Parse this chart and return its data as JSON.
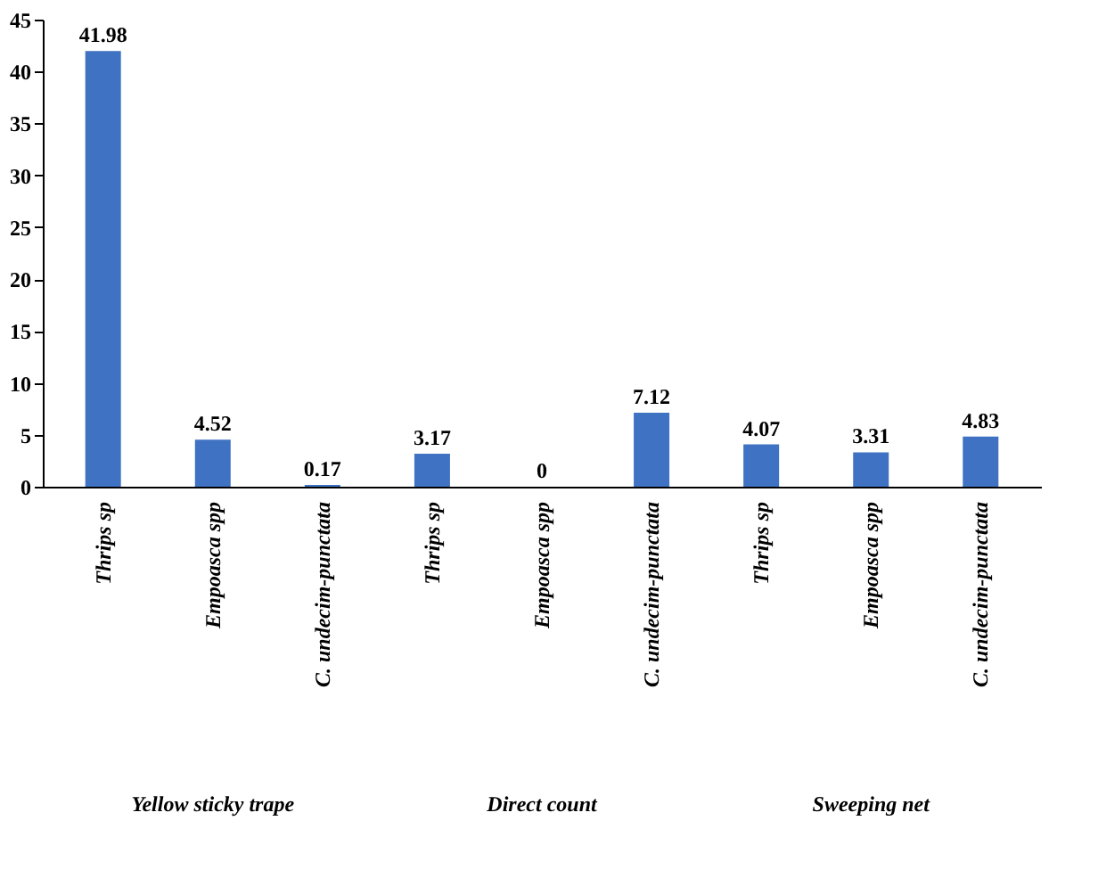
{
  "chart_data": {
    "type": "bar",
    "categories": [
      "Thrips sp",
      "Empoasca spp",
      "C. undecim-punctata",
      "Thrips sp",
      "Empoasca spp",
      "C. undecim-punctata",
      "Thrips sp",
      "Empoasca spp",
      "C. undecim-punctata"
    ],
    "values": [
      41.98,
      4.52,
      0.17,
      3.17,
      0,
      7.12,
      4.07,
      3.31,
      4.83
    ],
    "color": "#3f72c2",
    "ylim": [
      0,
      45
    ],
    "yticks": [
      0,
      5,
      10,
      15,
      20,
      25,
      30,
      35,
      40,
      45
    ],
    "grid": false,
    "data_labels": true,
    "annotations": [
      "Yellow sticky trape",
      "Direct count",
      "Sweeping net"
    ]
  }
}
